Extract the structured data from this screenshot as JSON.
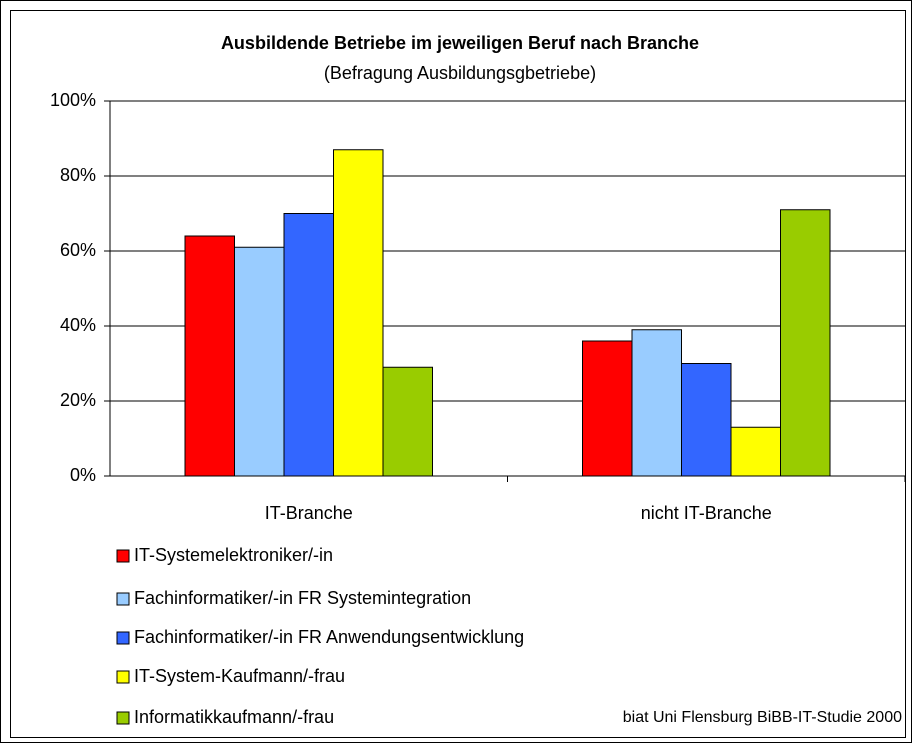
{
  "chart_data": {
    "type": "bar",
    "title": "Ausbildende Betriebe im jeweiligen Beruf nach Branche",
    "subtitle": "(Befragung Ausbildungsgbetriebe)",
    "categories": [
      "IT-Branche",
      "nicht IT-Branche"
    ],
    "series": [
      {
        "name": "IT-Systemelektroniker/-in",
        "color": "#ff0000",
        "values": [
          64,
          36
        ]
      },
      {
        "name": "Fachinformatiker/-in FR Systemintegration",
        "color": "#99ccff",
        "values": [
          61,
          39
        ]
      },
      {
        "name": "Fachinformatiker/-in FR Anwendungsentwicklung",
        "color": "#3366ff",
        "values": [
          70,
          30
        ]
      },
      {
        "name": "IT-System-Kaufmann/-frau",
        "color": "#ffff00",
        "values": [
          87,
          13
        ]
      },
      {
        "name": "Informatikkaufmann/-frau",
        "color": "#99cc00",
        "values": [
          29,
          71
        ]
      }
    ],
    "ylim": [
      0,
      100
    ],
    "yticks": [
      {
        "value": 0,
        "label": "0%"
      },
      {
        "value": 20,
        "label": "20%"
      },
      {
        "value": 40,
        "label": "40%"
      },
      {
        "value": 60,
        "label": "60%"
      },
      {
        "value": 80,
        "label": "80%"
      },
      {
        "value": 100,
        "label": "100%"
      }
    ],
    "grid": true,
    "source": "biat Uni Flensburg BiBB-IT-Studie 2000"
  }
}
